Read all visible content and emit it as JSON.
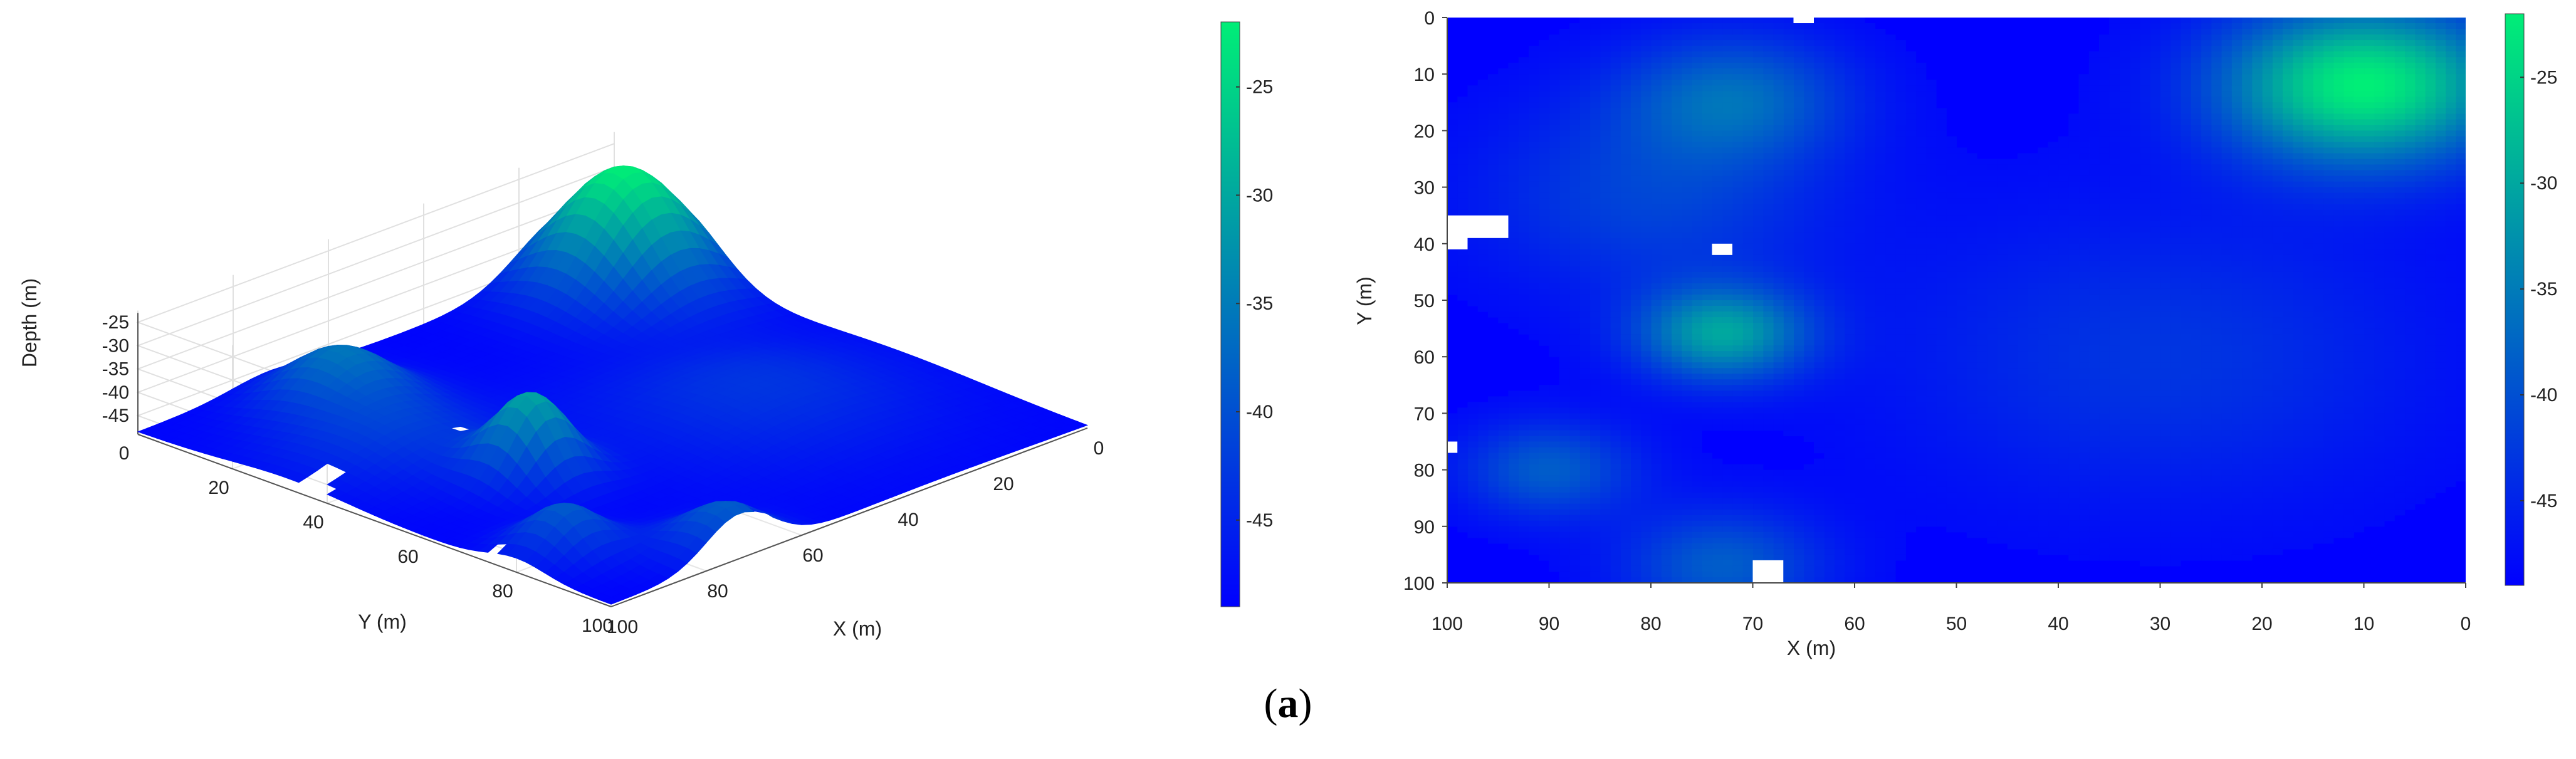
{
  "caption": {
    "open": "(",
    "letter": "a",
    "close": ")"
  },
  "colors": {
    "low": "#0000ff",
    "high": "#00ee77"
  },
  "chart_data": [
    {
      "type": "surface3d",
      "title": "",
      "xlabel": "X (m)",
      "ylabel": "Y (m)",
      "zlabel": "Depth (m)",
      "x_ticks": [
        "0",
        "20",
        "40",
        "60",
        "80",
        "100"
      ],
      "y_ticks": [
        "0",
        "20",
        "40",
        "60",
        "80",
        "100"
      ],
      "z_ticks": [
        "-25",
        "-30",
        "-35",
        "-40",
        "-45"
      ],
      "xlim": [
        0,
        100
      ],
      "ylim": [
        0,
        100
      ],
      "zlim": [
        -49,
        -22
      ],
      "grid": true,
      "colormap": "blue-to-green",
      "base_depth": -48.5,
      "peaks": [
        {
          "x": 10,
          "y": 12,
          "depth": -22.0,
          "sigma": 10
        },
        {
          "x": 73,
          "y": 56,
          "depth": -31.0,
          "sigma": 6
        },
        {
          "x": 72,
          "y": 14,
          "depth": -37.5,
          "sigma": 8
        },
        {
          "x": 90,
          "y": 80,
          "depth": -38.5,
          "sigma": 6
        },
        {
          "x": 73,
          "y": 97,
          "depth": -38.5,
          "sigma": 7
        },
        {
          "x": 80,
          "y": 32,
          "depth": -41.5,
          "sigma": 12
        },
        {
          "x": 30,
          "y": 60,
          "depth": -43.0,
          "sigma": 18
        }
      ],
      "missing_cells": [
        {
          "x0": 64,
          "x1": 66,
          "y0": 0,
          "y1": 1
        },
        {
          "x0": 98,
          "x1": 100,
          "y0": 35,
          "y1": 41
        },
        {
          "x0": 94,
          "x1": 98,
          "y0": 35,
          "y1": 39
        },
        {
          "x0": 72,
          "x1": 74,
          "y0": 40,
          "y1": 42
        },
        {
          "x0": 99,
          "x1": 100,
          "y0": 75,
          "y1": 77
        },
        {
          "x0": 67,
          "x1": 70,
          "y0": 96,
          "y1": 100
        }
      ],
      "colorbar": {
        "ticks": [
          "-25",
          "-30",
          "-35",
          "-40",
          "-45"
        ],
        "range": [
          -49,
          -22
        ]
      }
    },
    {
      "type": "heatmap",
      "title": "",
      "xlabel": "X (m)",
      "ylabel": "Y (m)",
      "x_ticks": [
        "100",
        "90",
        "80",
        "70",
        "60",
        "50",
        "40",
        "30",
        "20",
        "10",
        "0"
      ],
      "y_ticks": [
        "0",
        "10",
        "20",
        "30",
        "40",
        "50",
        "60",
        "70",
        "80",
        "90",
        "100"
      ],
      "xlim": [
        100,
        0
      ],
      "ylim": [
        0,
        100
      ],
      "x_reversed": true,
      "y_reversed": true,
      "colormap": "blue-to-green",
      "colorbar": {
        "ticks": [
          "-25",
          "-30",
          "-35",
          "-40",
          "-45"
        ],
        "range": [
          -49,
          -22
        ]
      }
    }
  ]
}
